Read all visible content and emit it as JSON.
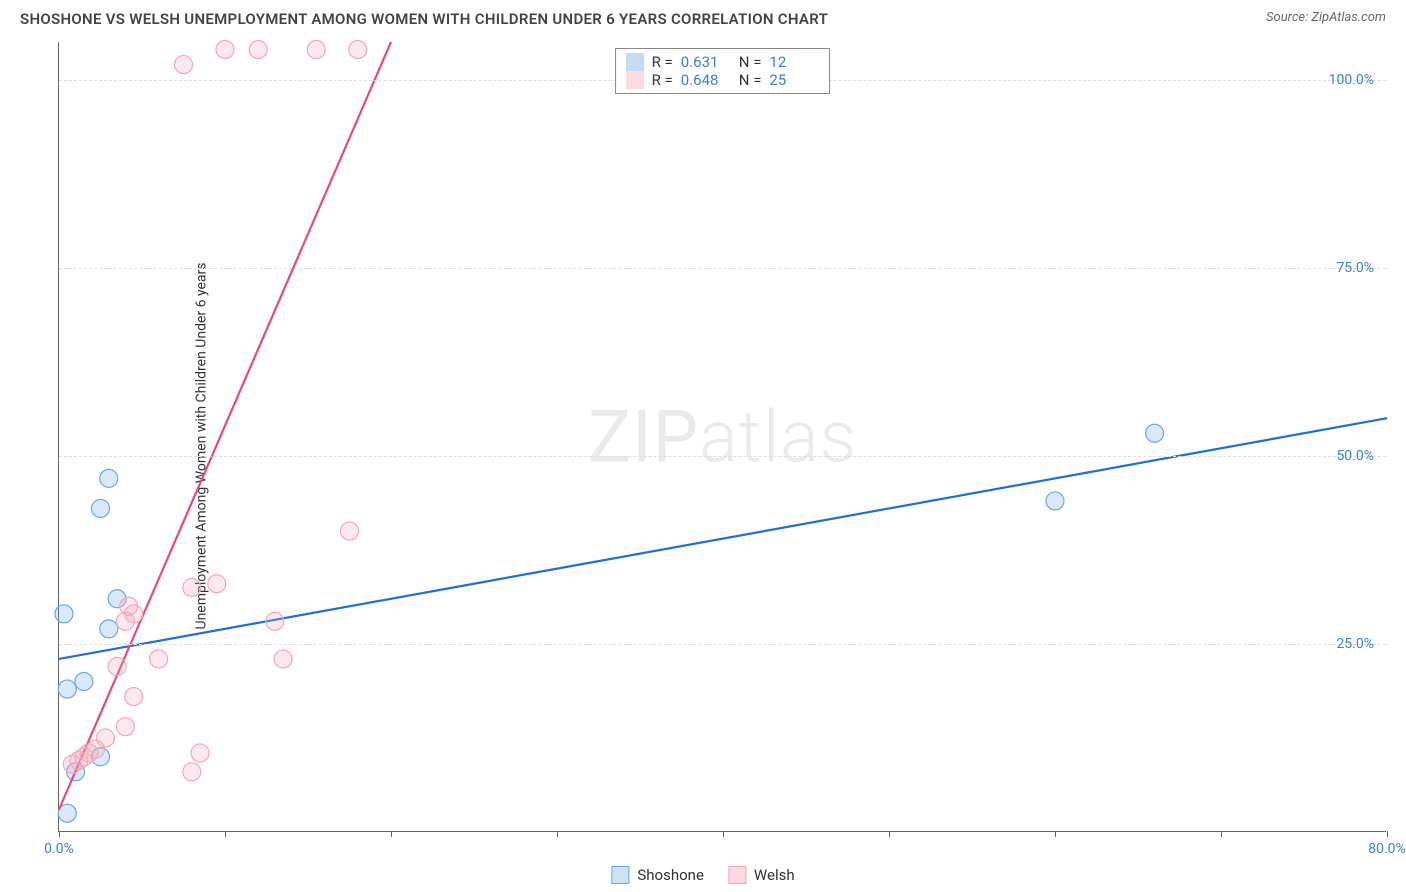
{
  "title": "SHOSHONE VS WELSH UNEMPLOYMENT AMONG WOMEN WITH CHILDREN UNDER 6 YEARS CORRELATION CHART",
  "source": "Source: ZipAtlas.com",
  "watermark": "ZIPatlas",
  "ylabel": "Unemployment Among Women with Children Under 6 years",
  "chart": {
    "type": "scatter",
    "xlim": [
      0,
      80
    ],
    "ylim": [
      0,
      105
    ],
    "xticks": [
      0,
      10,
      20,
      30,
      40,
      50,
      60,
      70,
      80
    ],
    "xtick_labels_shown": {
      "0": "0.0%",
      "80": "80.0%"
    },
    "yticks": [
      25,
      50,
      75,
      100
    ],
    "ytick_labels": [
      "25.0%",
      "50.0%",
      "75.0%",
      "100.0%"
    ],
    "grid_color": "#dddddd",
    "axis_color": "#666666",
    "background_color": "#ffffff",
    "tick_label_color": "#3b7dd8",
    "marker_radius": 9,
    "marker_fill_opacity": 0.25,
    "marker_stroke_width": 1.2,
    "line_stroke_width": 2.2,
    "series": [
      {
        "name": "Shoshone",
        "color": "#6aa6e8",
        "line_color": "#1f6fd4",
        "R": 0.631,
        "N": 12,
        "points": [
          [
            0.5,
            2.5
          ],
          [
            1.0,
            8.0
          ],
          [
            2.5,
            10.0
          ],
          [
            1.5,
            20.0
          ],
          [
            0.5,
            19.0
          ],
          [
            3.0,
            27.0
          ],
          [
            0.3,
            29.0
          ],
          [
            3.5,
            31.0
          ],
          [
            2.5,
            43.0
          ],
          [
            3.0,
            47.0
          ],
          [
            60.0,
            44.0
          ],
          [
            66.0,
            53.0
          ]
        ],
        "regression": {
          "x1": 0,
          "y1": 23,
          "x2": 80,
          "y2": 55
        }
      },
      {
        "name": "Welsh",
        "color": "#f4a6b9",
        "line_color": "#e84a7a",
        "R": 0.648,
        "N": 25,
        "points": [
          [
            0.8,
            9.0
          ],
          [
            1.2,
            9.5
          ],
          [
            1.5,
            10.0
          ],
          [
            1.8,
            10.5
          ],
          [
            2.2,
            11.0
          ],
          [
            2.8,
            12.5
          ],
          [
            4.0,
            14.0
          ],
          [
            4.5,
            18.0
          ],
          [
            8.0,
            8.0
          ],
          [
            8.5,
            10.5
          ],
          [
            3.5,
            22.0
          ],
          [
            6.0,
            23.0
          ],
          [
            4.0,
            28.0
          ],
          [
            4.5,
            29.0
          ],
          [
            4.2,
            30.0
          ],
          [
            8.0,
            32.5
          ],
          [
            9.5,
            33.0
          ],
          [
            13.5,
            23.0
          ],
          [
            13.0,
            28.0
          ],
          [
            17.5,
            40.0
          ],
          [
            7.5,
            102.0
          ],
          [
            10.0,
            104.0
          ],
          [
            12.0,
            104.0
          ],
          [
            15.5,
            104.0
          ],
          [
            18.0,
            104.0
          ]
        ],
        "regression": {
          "x1": 0,
          "y1": 3,
          "x2": 20,
          "y2": 105
        }
      }
    ]
  },
  "legend_top": {
    "r_label": "R  =",
    "n_label": "N  ="
  },
  "legend_bottom": [
    {
      "label": "Shoshone",
      "color_fill": "#cfe3f8",
      "color_border": "#6aa6e8"
    },
    {
      "label": "Welsh",
      "color_fill": "#fbd9e2",
      "color_border": "#f4a6b9"
    }
  ]
}
